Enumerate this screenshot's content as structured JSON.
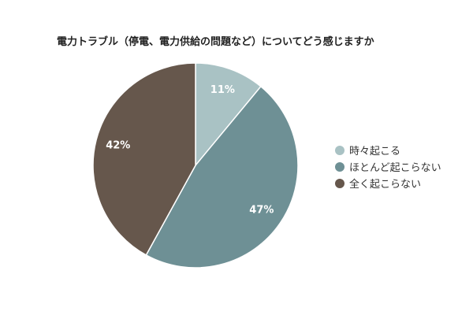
{
  "chart_data": {
    "type": "pie",
    "title": "電力トラブル（停電、電力供給の問題など）についてどう感じますか",
    "categories": [
      "時々起こる",
      "ほとんど起こらない",
      "全く起こらない"
    ],
    "values": [
      11,
      47,
      42
    ],
    "data_labels": [
      "11%",
      "47%",
      "42%"
    ],
    "colors": [
      "#a9c2c4",
      "#6e9095",
      "#66574c"
    ],
    "legend_position": "right",
    "grid": false
  }
}
